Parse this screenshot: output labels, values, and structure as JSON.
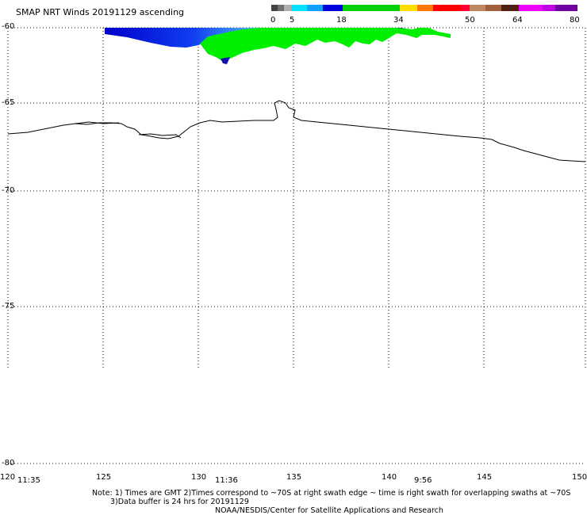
{
  "title": "SMAP NRT Winds 20191129 ascending",
  "colorbar": {
    "segments": [
      {
        "from": 0,
        "to": 5,
        "colors": [
          "#555555",
          "#aaaaaa"
        ]
      },
      {
        "from": 5,
        "to": 18,
        "colors": [
          "#00e0ff",
          "#0000cc"
        ]
      },
      {
        "from": 18,
        "to": 34,
        "colors": [
          "#00cc00",
          "#00dd00"
        ]
      },
      {
        "from": 34,
        "to": 50,
        "colors": [
          "#ffee00",
          "#ff8800",
          "#ff0000",
          "#ff0040"
        ]
      },
      {
        "from": 50,
        "to": 64,
        "colors": [
          "#c08060",
          "#502010"
        ]
      },
      {
        "from": 64,
        "to": 80,
        "colors": [
          "#dd00ff",
          "#7700aa"
        ]
      }
    ],
    "ticks": [
      "0",
      "5",
      "18",
      "34",
      "50",
      "64",
      "80"
    ]
  },
  "axes": {
    "lat_labels": [
      "-60",
      "-65",
      "-70",
      "-75",
      "-80"
    ],
    "lon_labels": [
      "120",
      "125",
      "130",
      "135",
      "140",
      "145",
      "150"
    ],
    "lon_range": [
      120,
      150
    ],
    "lat_range": [
      -60,
      -80
    ]
  },
  "swath_times": [
    "11:35",
    "11:36",
    "9:56"
  ],
  "footer": {
    "line1": "Note: 1) Times are GMT 2)Times correspond to ~70S at right swath edge ~ time is right swath for overlapping swaths at ~70S",
    "line2": "3)Data buffer is 24 hrs for 20191129",
    "line3": "NOAA/NESDIS/Center for Satellite Applications and Research"
  }
}
